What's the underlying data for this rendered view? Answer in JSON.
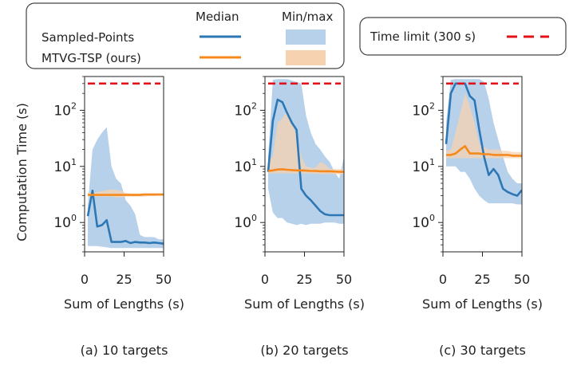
{
  "legend": {
    "header_median": "Median",
    "header_minmax": "Min/max",
    "series1": "Sampled-Points",
    "series2": "MTVG-TSP (ours)",
    "limit_label": "Time limit (300 s)"
  },
  "ylabel": "Computation Time (s)",
  "colors": {
    "sampled": "#2e77b5",
    "mtvg": "#f5891e",
    "sampled_fill": "#b7d1ea",
    "mtvg_fill": "#f7d2b0",
    "limit": "#e3101a"
  },
  "chart_data": [
    {
      "type": "line",
      "title": "(a) 10 targets",
      "xlabel": "Sum of Lengths (s)",
      "ylabel": "Computation Time (s)",
      "scale": "log",
      "xlim": [
        0,
        50
      ],
      "ylim": [
        0.3,
        400
      ],
      "xticks": [
        "0",
        "25",
        "50"
      ],
      "yticks": [
        "10^0",
        "10^1",
        "10^2"
      ],
      "time_limit": 300,
      "x": [
        2,
        5,
        8,
        11,
        14,
        17,
        20,
        23,
        26,
        29,
        32,
        35,
        38,
        41,
        44,
        47,
        50
      ],
      "series": [
        {
          "name": "Sampled-Points",
          "median": [
            1.3,
            3.7,
            0.85,
            0.9,
            1.1,
            0.45,
            0.45,
            0.45,
            0.47,
            0.43,
            0.45,
            0.44,
            0.44,
            0.43,
            0.44,
            0.43,
            0.42
          ],
          "min": [
            0.38,
            0.38,
            0.38,
            0.37,
            0.36,
            0.35,
            0.35,
            0.35,
            0.35,
            0.35,
            0.35,
            0.35,
            0.35,
            0.35,
            0.35,
            0.35,
            0.35
          ],
          "max": [
            2.0,
            20,
            30,
            40,
            50,
            10,
            6,
            5,
            2.5,
            2.0,
            1.4,
            0.6,
            0.55,
            0.55,
            0.55,
            0.5,
            0.5
          ]
        },
        {
          "name": "MTVG-TSP (ours)",
          "median": [
            3.1,
            3.1,
            3.1,
            3.1,
            3.1,
            3.1,
            3.1,
            3.1,
            3.1,
            3.1,
            3.1,
            3.1,
            3.15,
            3.15,
            3.15,
            3.15,
            3.15
          ],
          "min": [
            2.9,
            2.9,
            2.9,
            2.9,
            2.9,
            2.9,
            2.8,
            2.8,
            2.9,
            2.9,
            2.9,
            2.9,
            2.9,
            2.95,
            2.95,
            3.0,
            3.0
          ],
          "max": [
            3.4,
            3.4,
            3.5,
            3.6,
            3.8,
            3.9,
            3.8,
            3.7,
            3.4,
            3.3,
            3.3,
            3.3,
            3.3,
            3.3,
            3.3,
            3.3,
            3.3
          ]
        }
      ]
    },
    {
      "type": "line",
      "title": "(b) 20 targets",
      "xlabel": "Sum of Lengths (s)",
      "ylabel": "",
      "scale": "log",
      "xlim": [
        0,
        50
      ],
      "ylim": [
        0.3,
        400
      ],
      "xticks": [
        "0",
        "25",
        "50"
      ],
      "yticks": [
        "10^0",
        "10^1",
        "10^2"
      ],
      "time_limit": 300,
      "x": [
        2,
        5,
        8,
        11,
        14,
        17,
        20,
        23,
        26,
        29,
        32,
        35,
        38,
        41,
        44,
        47,
        50
      ],
      "series": [
        {
          "name": "Sampled-Points",
          "median": [
            8,
            65,
            155,
            140,
            90,
            60,
            45,
            4,
            3,
            2.5,
            2,
            1.6,
            1.4,
            1.35,
            1.35,
            1.35,
            1.35
          ],
          "min": [
            4,
            1.5,
            1.2,
            1.2,
            1.0,
            0.95,
            0.9,
            0.95,
            0.9,
            0.95,
            0.95,
            0.95,
            1.0,
            1.0,
            1.0,
            0.95,
            0.95
          ],
          "max": [
            15,
            350,
            360,
            360,
            360,
            340,
            320,
            300,
            80,
            40,
            25,
            20,
            15,
            12,
            8,
            6,
            15
          ]
        },
        {
          "name": "MTVG-TSP (ours)",
          "median": [
            8.3,
            8.5,
            8.8,
            8.9,
            8.7,
            8.6,
            8.5,
            8.5,
            8.4,
            8.3,
            8.3,
            8.2,
            8.2,
            8.2,
            8.1,
            8.0,
            8.0
          ],
          "min": [
            7.5,
            7.5,
            7.5,
            7.5,
            7.5,
            7.5,
            7.5,
            7.5,
            7.5,
            7.5,
            7.4,
            7.3,
            7.3,
            7.3,
            7.2,
            7.2,
            7.2
          ],
          "max": [
            12,
            15,
            60,
            70,
            100,
            60,
            35,
            15,
            10,
            9.5,
            9.5,
            12,
            11,
            9,
            9,
            9,
            9
          ]
        }
      ]
    },
    {
      "type": "line",
      "title": "(c) 30 targets",
      "xlabel": "Sum of Lengths (s)",
      "ylabel": "",
      "scale": "log",
      "xlim": [
        0,
        50
      ],
      "ylim": [
        0.3,
        400
      ],
      "xticks": [
        "0",
        "25",
        "50"
      ],
      "yticks": [
        "10^0",
        "10^1",
        "10^2"
      ],
      "time_limit": 300,
      "x": [
        2,
        5,
        8,
        11,
        14,
        17,
        20,
        23,
        26,
        29,
        32,
        35,
        38,
        41,
        44,
        47,
        50
      ],
      "series": [
        {
          "name": "Sampled-Points",
          "median": [
            25,
            200,
            300,
            300,
            300,
            180,
            150,
            45,
            15,
            7,
            9,
            7,
            4,
            3.5,
            3.2,
            3,
            3.8
          ],
          "min": [
            10,
            10,
            10,
            8,
            8,
            6,
            4,
            3,
            2.5,
            2.2,
            2.2,
            2.2,
            2.2,
            2.2,
            2.2,
            2.1,
            2.1
          ],
          "max": [
            60,
            350,
            360,
            360,
            360,
            360,
            360,
            360,
            320,
            160,
            60,
            30,
            15,
            8,
            6,
            5,
            5
          ]
        },
        {
          "name": "MTVG-TSP (ours)",
          "median": [
            16,
            16,
            17,
            20,
            23,
            17,
            17,
            17,
            16.5,
            16.5,
            16,
            16,
            16,
            16,
            15.5,
            15.5,
            15.5
          ],
          "min": [
            14,
            14,
            14,
            14,
            14,
            14,
            14,
            14,
            14,
            14,
            14,
            14,
            14,
            14,
            14,
            14,
            14
          ],
          "max": [
            19,
            20,
            40,
            90,
            200,
            120,
            60,
            25,
            22,
            20,
            20,
            20,
            19,
            19,
            18,
            18,
            18
          ]
        }
      ]
    }
  ]
}
